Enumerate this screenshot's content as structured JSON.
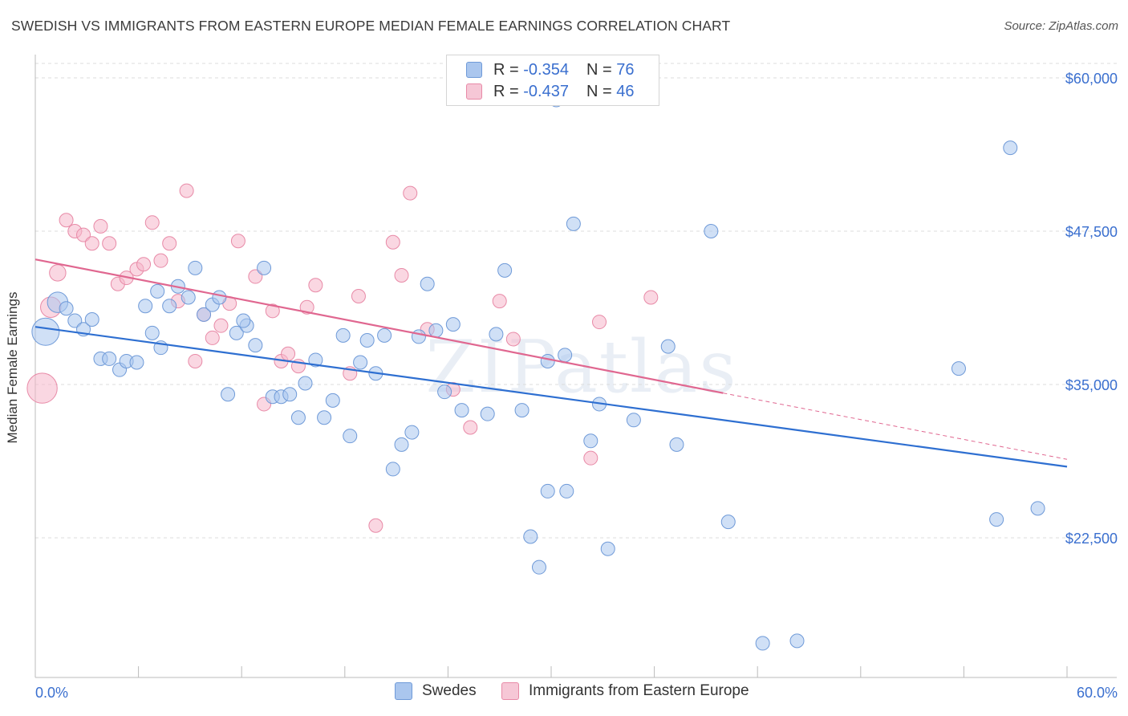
{
  "header": {
    "title": "SWEDISH VS IMMIGRANTS FROM EASTERN EUROPE MEDIAN FEMALE EARNINGS CORRELATION CHART",
    "source": "Source: ZipAtlas.com"
  },
  "legend_top": {
    "series": [
      {
        "r_label": "R =",
        "r_value": "-0.354",
        "n_label": "N =",
        "n_value": "76"
      },
      {
        "r_label": "R =",
        "r_value": "-0.437",
        "n_label": "N =",
        "n_value": "46"
      }
    ]
  },
  "legend_bottom": {
    "items": [
      {
        "label": "Swedes"
      },
      {
        "label": "Immigrants from Eastern Europe"
      }
    ]
  },
  "colors": {
    "blue_fill": "#aac6ee",
    "blue_stroke": "#6f9ad8",
    "blue_line": "#2e6fd1",
    "pink_fill": "#f6b7ca",
    "pink_stroke": "#e88aa7",
    "pink_line": "#e06790",
    "tick_label": "#3a6fcf",
    "grid": "#dcdcdc"
  },
  "watermark": "ZIPatlas",
  "chart_data": {
    "type": "scatter",
    "title": "SWEDISH VS IMMIGRANTS FROM EASTERN EUROPE MEDIAN FEMALE EARNINGS CORRELATION CHART",
    "xlabel": "",
    "ylabel": "Median Female Earnings",
    "xlim": [
      0,
      60
    ],
    "ylim": [
      12000,
      62000
    ],
    "x_tick_labels": [
      "0.0%",
      "60.0%"
    ],
    "y_ticks": [
      22500,
      35000,
      47500,
      60000
    ],
    "y_tick_labels": [
      "$22,500",
      "$35,000",
      "$47,500",
      "$60,000"
    ],
    "grid": true,
    "legend_position": "top-center",
    "series": [
      {
        "name": "Swedes",
        "color": "#aac6ee",
        "trend": {
          "x": [
            0,
            60
          ],
          "y": [
            39700,
            28300
          ]
        },
        "points": [
          {
            "x": 0.6,
            "y": 39300,
            "s": 2
          },
          {
            "x": 1.3,
            "y": 41700,
            "s": 1.5
          },
          {
            "x": 1.8,
            "y": 41200,
            "s": 1
          },
          {
            "x": 2.3,
            "y": 40200,
            "s": 1
          },
          {
            "x": 2.8,
            "y": 39500,
            "s": 1
          },
          {
            "x": 3.3,
            "y": 40300,
            "s": 1
          },
          {
            "x": 3.8,
            "y": 37100,
            "s": 1
          },
          {
            "x": 4.3,
            "y": 37100,
            "s": 1
          },
          {
            "x": 4.9,
            "y": 36200,
            "s": 1
          },
          {
            "x": 5.3,
            "y": 36900,
            "s": 1
          },
          {
            "x": 5.9,
            "y": 36800,
            "s": 1
          },
          {
            "x": 6.4,
            "y": 41400,
            "s": 1
          },
          {
            "x": 6.8,
            "y": 39200,
            "s": 1
          },
          {
            "x": 7.3,
            "y": 38000,
            "s": 1
          },
          {
            "x": 7.8,
            "y": 41400,
            "s": 1
          },
          {
            "x": 8.3,
            "y": 43000,
            "s": 1
          },
          {
            "x": 8.9,
            "y": 42100,
            "s": 1
          },
          {
            "x": 9.3,
            "y": 44500,
            "s": 1
          },
          {
            "x": 9.8,
            "y": 40700,
            "s": 1
          },
          {
            "x": 10.3,
            "y": 41500,
            "s": 1
          },
          {
            "x": 10.7,
            "y": 42100,
            "s": 1
          },
          {
            "x": 11.2,
            "y": 34200,
            "s": 1
          },
          {
            "x": 11.7,
            "y": 39200,
            "s": 1
          },
          {
            "x": 12.3,
            "y": 39800,
            "s": 1
          },
          {
            "x": 12.8,
            "y": 38200,
            "s": 1
          },
          {
            "x": 13.3,
            "y": 44500,
            "s": 1
          },
          {
            "x": 13.8,
            "y": 34000,
            "s": 1
          },
          {
            "x": 14.3,
            "y": 34000,
            "s": 1
          },
          {
            "x": 14.8,
            "y": 34200,
            "s": 1
          },
          {
            "x": 15.3,
            "y": 32300,
            "s": 1
          },
          {
            "x": 15.7,
            "y": 35100,
            "s": 1
          },
          {
            "x": 16.3,
            "y": 37000,
            "s": 1
          },
          {
            "x": 16.8,
            "y": 32300,
            "s": 1
          },
          {
            "x": 17.3,
            "y": 33700,
            "s": 1
          },
          {
            "x": 17.9,
            "y": 39000,
            "s": 1
          },
          {
            "x": 18.3,
            "y": 30800,
            "s": 1
          },
          {
            "x": 18.9,
            "y": 36800,
            "s": 1
          },
          {
            "x": 19.3,
            "y": 38600,
            "s": 1
          },
          {
            "x": 19.8,
            "y": 35900,
            "s": 1
          },
          {
            "x": 20.3,
            "y": 39000,
            "s": 1
          },
          {
            "x": 20.8,
            "y": 28100,
            "s": 1
          },
          {
            "x": 21.3,
            "y": 30100,
            "s": 1
          },
          {
            "x": 21.9,
            "y": 31100,
            "s": 1
          },
          {
            "x": 22.3,
            "y": 38900,
            "s": 1
          },
          {
            "x": 22.8,
            "y": 43200,
            "s": 1
          },
          {
            "x": 23.3,
            "y": 39400,
            "s": 1
          },
          {
            "x": 23.8,
            "y": 34400,
            "s": 1
          },
          {
            "x": 24.3,
            "y": 39900,
            "s": 1
          },
          {
            "x": 24.8,
            "y": 32900,
            "s": 1
          },
          {
            "x": 26.3,
            "y": 32600,
            "s": 1
          },
          {
            "x": 26.8,
            "y": 39100,
            "s": 1
          },
          {
            "x": 27.3,
            "y": 44300,
            "s": 1
          },
          {
            "x": 28.3,
            "y": 32900,
            "s": 1
          },
          {
            "x": 28.8,
            "y": 22600,
            "s": 1
          },
          {
            "x": 29.3,
            "y": 20100,
            "s": 1
          },
          {
            "x": 29.8,
            "y": 36900,
            "s": 1
          },
          {
            "x": 30.3,
            "y": 58200,
            "s": 1
          },
          {
            "x": 30.8,
            "y": 37400,
            "s": 1
          },
          {
            "x": 31.3,
            "y": 48100,
            "s": 1
          },
          {
            "x": 32.3,
            "y": 30400,
            "s": 1
          },
          {
            "x": 32.8,
            "y": 33400,
            "s": 1
          },
          {
            "x": 33.3,
            "y": 21600,
            "s": 1
          },
          {
            "x": 34.8,
            "y": 32100,
            "s": 1
          },
          {
            "x": 36.8,
            "y": 38100,
            "s": 1
          },
          {
            "x": 37.3,
            "y": 30100,
            "s": 1
          },
          {
            "x": 39.3,
            "y": 47500,
            "s": 1
          },
          {
            "x": 40.3,
            "y": 23800,
            "s": 1
          },
          {
            "x": 42.3,
            "y": 13900,
            "s": 1
          },
          {
            "x": 44.3,
            "y": 14100,
            "s": 1
          },
          {
            "x": 30.9,
            "y": 26300,
            "s": 1
          },
          {
            "x": 29.8,
            "y": 26300,
            "s": 1
          },
          {
            "x": 53.7,
            "y": 36300,
            "s": 1
          },
          {
            "x": 56.7,
            "y": 54300,
            "s": 1
          },
          {
            "x": 58.3,
            "y": 24900,
            "s": 1
          },
          {
            "x": 55.9,
            "y": 24000,
            "s": 1
          },
          {
            "x": 12.1,
            "y": 40200,
            "s": 1
          },
          {
            "x": 7.1,
            "y": 42600,
            "s": 1
          }
        ]
      },
      {
        "name": "Immigrants from Eastern Europe",
        "color": "#f6b7ca",
        "trend": {
          "x": [
            0,
            40
          ],
          "y": [
            45200,
            34300
          ]
        },
        "trend_dashed": {
          "x": [
            40,
            60
          ],
          "y": [
            34300,
            28900
          ]
        },
        "points": [
          {
            "x": 0.4,
            "y": 34700,
            "s": 2.2
          },
          {
            "x": 0.9,
            "y": 41300,
            "s": 1.5
          },
          {
            "x": 1.3,
            "y": 44100,
            "s": 1.2
          },
          {
            "x": 1.8,
            "y": 48400,
            "s": 1
          },
          {
            "x": 2.3,
            "y": 47500,
            "s": 1
          },
          {
            "x": 2.8,
            "y": 47200,
            "s": 1
          },
          {
            "x": 3.3,
            "y": 46500,
            "s": 1
          },
          {
            "x": 3.8,
            "y": 47900,
            "s": 1
          },
          {
            "x": 4.3,
            "y": 46500,
            "s": 1
          },
          {
            "x": 4.8,
            "y": 43200,
            "s": 1
          },
          {
            "x": 5.3,
            "y": 43700,
            "s": 1
          },
          {
            "x": 5.9,
            "y": 44400,
            "s": 1
          },
          {
            "x": 6.3,
            "y": 44800,
            "s": 1
          },
          {
            "x": 6.8,
            "y": 48200,
            "s": 1
          },
          {
            "x": 7.3,
            "y": 45100,
            "s": 1
          },
          {
            "x": 7.8,
            "y": 46500,
            "s": 1
          },
          {
            "x": 8.3,
            "y": 41800,
            "s": 1
          },
          {
            "x": 8.8,
            "y": 50800,
            "s": 1
          },
          {
            "x": 9.3,
            "y": 36900,
            "s": 1
          },
          {
            "x": 9.8,
            "y": 40700,
            "s": 1
          },
          {
            "x": 10.3,
            "y": 38800,
            "s": 1
          },
          {
            "x": 10.8,
            "y": 39800,
            "s": 1
          },
          {
            "x": 11.3,
            "y": 41600,
            "s": 1
          },
          {
            "x": 11.8,
            "y": 46700,
            "s": 1
          },
          {
            "x": 12.8,
            "y": 43800,
            "s": 1
          },
          {
            "x": 13.3,
            "y": 33400,
            "s": 1
          },
          {
            "x": 13.8,
            "y": 41000,
            "s": 1
          },
          {
            "x": 14.3,
            "y": 36900,
            "s": 1
          },
          {
            "x": 14.7,
            "y": 37500,
            "s": 1
          },
          {
            "x": 15.3,
            "y": 36500,
            "s": 1
          },
          {
            "x": 15.8,
            "y": 41300,
            "s": 1
          },
          {
            "x": 16.3,
            "y": 43100,
            "s": 1
          },
          {
            "x": 18.3,
            "y": 35900,
            "s": 1
          },
          {
            "x": 18.8,
            "y": 42200,
            "s": 1
          },
          {
            "x": 19.8,
            "y": 23500,
            "s": 1
          },
          {
            "x": 20.8,
            "y": 46600,
            "s": 1
          },
          {
            "x": 21.3,
            "y": 43900,
            "s": 1
          },
          {
            "x": 21.8,
            "y": 50600,
            "s": 1
          },
          {
            "x": 22.8,
            "y": 39500,
            "s": 1
          },
          {
            "x": 24.3,
            "y": 34600,
            "s": 1
          },
          {
            "x": 25.3,
            "y": 31500,
            "s": 1
          },
          {
            "x": 27.0,
            "y": 41800,
            "s": 1
          },
          {
            "x": 27.8,
            "y": 38700,
            "s": 1
          },
          {
            "x": 32.8,
            "y": 40100,
            "s": 1
          },
          {
            "x": 32.3,
            "y": 29000,
            "s": 1
          },
          {
            "x": 35.8,
            "y": 42100,
            "s": 1
          }
        ]
      }
    ]
  }
}
